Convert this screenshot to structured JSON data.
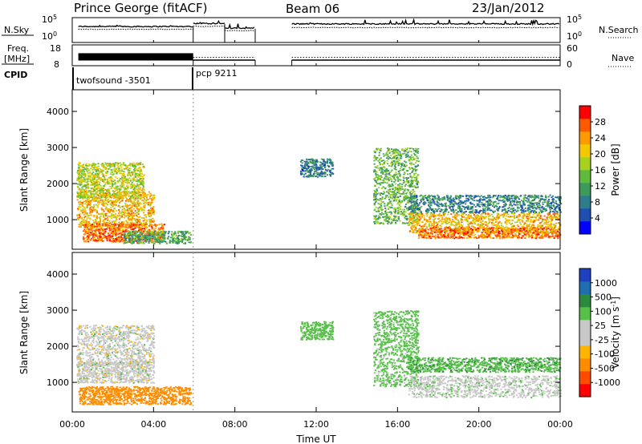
{
  "header": {
    "station": "Prince George (fitACF)",
    "beam": "Beam 06",
    "date": "23/Jan/2012"
  },
  "chart_data": [
    {
      "type": "line",
      "panel": "noise",
      "left_label": "N.Sky",
      "right_label": "N.Search",
      "left_ticks": [
        "10^5",
        "10^0"
      ],
      "right_ticks": [
        "10^5",
        "10^0"
      ],
      "yscale": "log",
      "xlim": [
        "00:00",
        "24:00"
      ],
      "segments": [
        {
          "x_start": 0.3,
          "x_end": 5.95,
          "sky_level": 3.2,
          "search_level": 2.6
        },
        {
          "x_start": 5.95,
          "x_end": 7.5,
          "sky_level": 3.9,
          "search_level": 3.3
        },
        {
          "x_start": 7.5,
          "x_end": 9.0,
          "sky_level": 2.8,
          "search_level": 2.3
        },
        {
          "x_start": 10.8,
          "x_end": 24.0,
          "sky_level": 3.8,
          "search_level": 3.0
        }
      ],
      "data_gap_hours": [
        9.0,
        10.8
      ]
    },
    {
      "type": "line",
      "panel": "frequency",
      "left_label_1": "Freq.",
      "left_label_2": "[MHz]",
      "right_label": "Nave",
      "left_ticks": [
        "18",
        "8"
      ],
      "right_ticks": [
        "60",
        "0"
      ],
      "ylim": [
        8,
        18
      ],
      "right_ylim": [
        0,
        60
      ],
      "freq_segments": [
        {
          "x_start": 0.3,
          "x_end": 5.95,
          "freq_min": 10.5,
          "freq_max": 14.0,
          "alternating": true
        },
        {
          "x_start": 5.95,
          "x_end": 9.0,
          "freq": 10.7
        },
        {
          "x_start": 10.8,
          "x_end": 24.0,
          "freq": 10.7
        }
      ],
      "nave_segments": [
        {
          "x_start": 5.95,
          "x_end": 9.0,
          "value": 24
        },
        {
          "x_start": 10.8,
          "x_end": 24.0,
          "value": 24
        }
      ]
    },
    {
      "type": "table",
      "panel": "cpid",
      "label": "CPID",
      "programs": [
        {
          "name": "twofsound  -3501",
          "x_start": 0.3
        },
        {
          "name": "pcp 9211",
          "x_start": 5.95
        }
      ]
    },
    {
      "type": "heatmap",
      "panel": "power",
      "ylabel": "Slant Range [km]",
      "ylim": [
        180,
        4600
      ],
      "yticks": [
        "1000",
        "2000",
        "3000",
        "4000"
      ],
      "colorbar": {
        "label": "Power [dB]",
        "ticks": [
          "28",
          "24",
          "20",
          "16",
          "12",
          "8",
          "4"
        ],
        "range": [
          0,
          32
        ],
        "colors": [
          "#0000ff",
          "#1f4fb0",
          "#2e7d8c",
          "#3d9a5a",
          "#60bb3c",
          "#a6d11e",
          "#f2c800",
          "#ff9900",
          "#ff5a00",
          "#ff0000"
        ]
      },
      "scatter_regions": [
        {
          "x": [
            0.2,
            4.0
          ],
          "y": [
            800,
            1800
          ],
          "value": 22
        },
        {
          "x": [
            0.2,
            3.5
          ],
          "y": [
            1600,
            2600
          ],
          "value": 18
        },
        {
          "x": [
            0.5,
            4.5
          ],
          "y": [
            400,
            900
          ],
          "value": 26
        },
        {
          "x": [
            2.5,
            5.8
          ],
          "y": [
            350,
            700
          ],
          "value": 12
        },
        {
          "x": [
            11.2,
            12.8
          ],
          "y": [
            2200,
            2700
          ],
          "value": 8
        },
        {
          "x": [
            14.8,
            17.0
          ],
          "y": [
            900,
            3000
          ],
          "value": 14
        },
        {
          "x": [
            16.5,
            24.0
          ],
          "y": [
            1200,
            1700
          ],
          "value": 9
        },
        {
          "x": [
            16.5,
            24.0
          ],
          "y": [
            650,
            1200
          ],
          "value": 22
        },
        {
          "x": [
            17.0,
            24.0
          ],
          "y": [
            500,
            800
          ],
          "value": 26
        }
      ]
    },
    {
      "type": "heatmap",
      "panel": "velocity",
      "ylabel": "Slant Range [km]",
      "ylim": [
        180,
        4600
      ],
      "yticks": [
        "1000",
        "2000",
        "3000",
        "4000"
      ],
      "xlabel": "Time UT",
      "xticks": [
        "00:00",
        "04:00",
        "08:00",
        "12:00",
        "16:00",
        "20:00",
        "00:00"
      ],
      "xlim": [
        0,
        24
      ],
      "colorbar": {
        "label": "Velocity  [m s^-1]",
        "ticks": [
          "1000",
          "500",
          "100",
          "25",
          "-25",
          "-100",
          "-500",
          "-1000"
        ],
        "range": [
          -1000,
          1000
        ],
        "colors": [
          "#ff0000",
          "#ff4b00",
          "#ff8c00",
          "#ffb400",
          "#c8c8c8",
          "#c8c8c8",
          "#58c04a",
          "#2b8a3e",
          "#1f6fb0",
          "#2040c0"
        ]
      },
      "scatter_regions": [
        {
          "x": [
            0.2,
            4.0
          ],
          "y": [
            1500,
            2600
          ],
          "value": 0
        },
        {
          "x": [
            0.2,
            4.0
          ],
          "y": [
            1000,
            1600
          ],
          "value": 0
        },
        {
          "x": [
            0.3,
            5.8
          ],
          "y": [
            400,
            900
          ],
          "value": -250
        },
        {
          "x": [
            11.2,
            12.8
          ],
          "y": [
            2200,
            2700
          ],
          "value": 60
        },
        {
          "x": [
            14.8,
            17.0
          ],
          "y": [
            900,
            3000
          ],
          "value": 50
        },
        {
          "x": [
            16.5,
            24.0
          ],
          "y": [
            1300,
            1700
          ],
          "value": 80
        },
        {
          "x": [
            16.5,
            24.0
          ],
          "y": [
            600,
            1200
          ],
          "value": 5
        }
      ]
    }
  ]
}
